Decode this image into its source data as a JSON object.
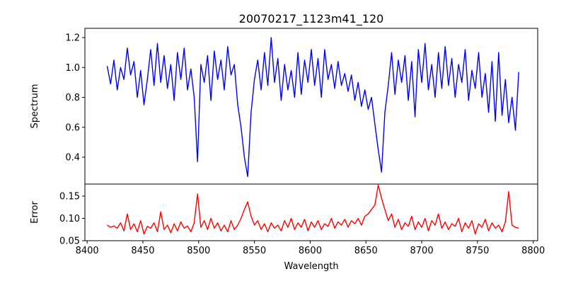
{
  "chart_data": [
    {
      "type": "line",
      "title": "20070217_1123m41_120",
      "ylabel": "Spectrum",
      "xlabel": "",
      "xlim": [
        8398,
        8804
      ],
      "ylim": [
        0.22,
        1.262
      ],
      "yticks": [
        0.4,
        0.6,
        0.8,
        1.0,
        1.2
      ],
      "ytick_labels": [
        "0.4",
        "0.6",
        "0.8",
        "1.0",
        "1.2"
      ],
      "grid": false,
      "color": "#0000ff",
      "x_start": 8418,
      "x_step": 3,
      "values": [
        1.01,
        0.89,
        1.05,
        0.85,
        1.0,
        0.92,
        1.13,
        0.95,
        1.04,
        0.8,
        0.98,
        0.75,
        0.92,
        1.12,
        0.88,
        1.16,
        0.9,
        1.08,
        0.86,
        1.02,
        0.78,
        1.1,
        0.92,
        1.13,
        0.85,
        0.99,
        0.8,
        0.37,
        1.02,
        0.9,
        1.08,
        0.78,
        1.11,
        0.92,
        1.05,
        0.85,
        1.14,
        0.95,
        1.02,
        0.75,
        0.6,
        0.4,
        0.27,
        0.7,
        0.92,
        1.05,
        0.85,
        1.1,
        0.88,
        1.2,
        0.9,
        1.06,
        0.78,
        1.02,
        0.85,
        0.98,
        0.8,
        1.1,
        0.82,
        1.05,
        0.9,
        1.12,
        0.88,
        1.06,
        0.8,
        1.12,
        0.92,
        1.02,
        0.86,
        1.04,
        0.88,
        0.96,
        0.84,
        0.95,
        0.78,
        0.9,
        0.74,
        0.85,
        0.72,
        0.8,
        0.62,
        0.45,
        0.3,
        0.7,
        0.88,
        1.1,
        0.82,
        1.05,
        0.9,
        1.08,
        0.78,
        1.04,
        0.67,
        1.12,
        0.9,
        1.16,
        0.85,
        1.02,
        0.8,
        1.1,
        0.86,
        1.14,
        0.88,
        1.06,
        0.8,
        1.02,
        0.9,
        1.12,
        0.78,
        0.98,
        0.86,
        1.1,
        0.8,
        0.96,
        0.7,
        1.04,
        0.64,
        1.1,
        0.68,
        0.92,
        0.63,
        0.8,
        0.58,
        0.97
      ]
    },
    {
      "type": "line",
      "title": "",
      "ylabel": "Error",
      "xlabel": "Wavelength",
      "xlim": [
        8398,
        8804
      ],
      "ylim": [
        0.05,
        0.177
      ],
      "yticks": [
        0.05,
        0.1,
        0.15
      ],
      "ytick_labels": [
        "0.05",
        "0.10",
        "0.15"
      ],
      "xticks": [
        8400,
        8450,
        8500,
        8550,
        8600,
        8650,
        8700,
        8750,
        8800
      ],
      "xtick_labels": [
        "8400",
        "8450",
        "8500",
        "8550",
        "8600",
        "8650",
        "8700",
        "8750",
        "8800"
      ],
      "grid": false,
      "color": "#ff0000",
      "x_start": 8418,
      "x_step": 3,
      "values": [
        0.085,
        0.08,
        0.083,
        0.078,
        0.09,
        0.072,
        0.11,
        0.075,
        0.088,
        0.07,
        0.095,
        0.065,
        0.082,
        0.078,
        0.09,
        0.07,
        0.115,
        0.075,
        0.085,
        0.068,
        0.088,
        0.072,
        0.092,
        0.078,
        0.083,
        0.07,
        0.09,
        0.155,
        0.08,
        0.095,
        0.075,
        0.1,
        0.078,
        0.09,
        0.072,
        0.085,
        0.07,
        0.095,
        0.075,
        0.085,
        0.1,
        0.12,
        0.137,
        0.105,
        0.085,
        0.095,
        0.075,
        0.088,
        0.07,
        0.09,
        0.078,
        0.085,
        0.072,
        0.095,
        0.08,
        0.1,
        0.075,
        0.09,
        0.08,
        0.098,
        0.072,
        0.092,
        0.08,
        0.095,
        0.075,
        0.088,
        0.082,
        0.1,
        0.078,
        0.092,
        0.085,
        0.098,
        0.08,
        0.095,
        0.088,
        0.1,
        0.085,
        0.105,
        0.11,
        0.12,
        0.13,
        0.175,
        0.145,
        0.12,
        0.095,
        0.11,
        0.08,
        0.098,
        0.075,
        0.09,
        0.082,
        0.105,
        0.075,
        0.092,
        0.08,
        0.1,
        0.072,
        0.095,
        0.085,
        0.11,
        0.078,
        0.092,
        0.075,
        0.088,
        0.082,
        0.1,
        0.07,
        0.09,
        0.078,
        0.095,
        0.065,
        0.088,
        0.08,
        0.098,
        0.072,
        0.09,
        0.078,
        0.085,
        0.07,
        0.092,
        0.16,
        0.085,
        0.08,
        0.078
      ]
    }
  ]
}
